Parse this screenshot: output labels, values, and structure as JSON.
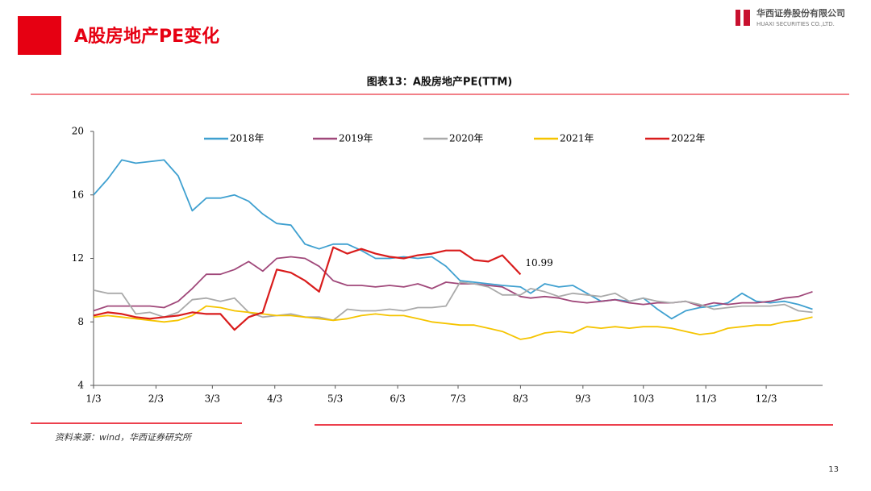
{
  "header": {
    "title": "A股房地产PE变化",
    "logo_cn": "华西证券股份有限公司",
    "logo_en": "HUAXI SECURITIES CO.,LTD."
  },
  "chart_data": {
    "type": "line",
    "title": "图表13：A股房地产PE(TTM)",
    "x": [
      "1/3",
      "1/10",
      "1/17",
      "1/24",
      "1/31",
      "2/7",
      "2/14",
      "2/21",
      "2/28",
      "3/7",
      "3/14",
      "3/21",
      "3/28",
      "4/4",
      "4/11",
      "4/18",
      "4/25",
      "5/2",
      "5/9",
      "5/16",
      "5/23",
      "5/30",
      "6/6",
      "6/13",
      "6/20",
      "6/27",
      "7/4",
      "7/11",
      "7/18",
      "7/25",
      "8/3",
      "8/8",
      "8/15",
      "8/22",
      "8/29",
      "9/5",
      "9/12",
      "9/19",
      "9/26",
      "10/3",
      "10/10",
      "10/17",
      "10/24",
      "10/31",
      "11/7",
      "11/14",
      "11/21",
      "11/28",
      "12/5",
      "12/12",
      "12/19",
      "12/26"
    ],
    "xlim": [
      "1/3",
      "12/31"
    ],
    "xticks": [
      "1/3",
      "2/3",
      "3/3",
      "4/3",
      "5/3",
      "6/3",
      "7/3",
      "8/3",
      "9/3",
      "10/3",
      "11/3",
      "12/3"
    ],
    "ylim": [
      4,
      20
    ],
    "yticks": [
      4,
      8,
      12,
      16,
      20
    ],
    "legend": "top",
    "series": [
      {
        "name": "2018年",
        "color": "#3fa0d0",
        "values": [
          16.0,
          17.0,
          18.2,
          18.0,
          18.1,
          18.2,
          17.2,
          15.0,
          15.8,
          15.8,
          16.0,
          15.6,
          14.8,
          14.2,
          14.1,
          12.9,
          12.6,
          12.9,
          12.9,
          12.5,
          12.0,
          12.0,
          12.1,
          12.0,
          12.1,
          11.5,
          10.6,
          10.5,
          10.4,
          10.3,
          10.2,
          9.8,
          10.4,
          10.2,
          10.3,
          9.8,
          9.3,
          9.4,
          9.3,
          9.5,
          8.8,
          8.2,
          8.7,
          8.9,
          9.0,
          9.2,
          9.8,
          9.3,
          9.2,
          9.3,
          9.1,
          8.8
        ]
      },
      {
        "name": "2019年",
        "color": "#a0487a",
        "values": [
          8.7,
          9.0,
          9.0,
          9.0,
          9.0,
          8.9,
          9.3,
          10.1,
          11.0,
          11.0,
          11.3,
          11.8,
          11.2,
          12.0,
          12.1,
          12.0,
          11.5,
          10.6,
          10.3,
          10.3,
          10.2,
          10.3,
          10.2,
          10.4,
          10.1,
          10.5,
          10.4,
          10.4,
          10.3,
          10.2,
          9.6,
          9.5,
          9.6,
          9.5,
          9.3,
          9.2,
          9.3,
          9.4,
          9.2,
          9.1,
          9.2,
          9.2,
          9.3,
          9.0,
          9.2,
          9.1,
          9.2,
          9.2,
          9.3,
          9.5,
          9.6,
          9.9
        ]
      },
      {
        "name": "2020年",
        "color": "#aaaaaa",
        "values": [
          10.0,
          9.8,
          9.8,
          8.5,
          8.6,
          8.3,
          8.6,
          9.4,
          9.5,
          9.3,
          9.5,
          8.6,
          8.3,
          8.4,
          8.5,
          8.3,
          8.3,
          8.1,
          8.8,
          8.7,
          8.7,
          8.8,
          8.7,
          8.9,
          8.9,
          9.0,
          10.5,
          10.4,
          10.2,
          9.7,
          9.7,
          10.1,
          9.9,
          9.6,
          9.8,
          9.7,
          9.6,
          9.8,
          9.3,
          9.5,
          9.3,
          9.2,
          9.3,
          9.1,
          8.8,
          8.9,
          9.0,
          9.0,
          9.0,
          9.1,
          8.7,
          8.6
        ]
      },
      {
        "name": "2021年",
        "color": "#f5c400",
        "values": [
          8.3,
          8.4,
          8.3,
          8.2,
          8.1,
          8.0,
          8.1,
          8.4,
          9.0,
          8.9,
          8.7,
          8.6,
          8.5,
          8.4,
          8.4,
          8.3,
          8.2,
          8.1,
          8.2,
          8.4,
          8.5,
          8.4,
          8.4,
          8.2,
          8.0,
          7.9,
          7.8,
          7.8,
          7.6,
          7.4,
          6.9,
          7.0,
          7.3,
          7.4,
          7.3,
          7.7,
          7.6,
          7.7,
          7.6,
          7.7,
          7.7,
          7.6,
          7.4,
          7.2,
          7.3,
          7.6,
          7.7,
          7.8,
          7.8,
          8.0,
          8.1,
          8.3
        ]
      },
      {
        "name": "2022年",
        "color": "#d91c1c",
        "values": [
          8.4,
          8.6,
          8.5,
          8.3,
          8.2,
          8.3,
          8.4,
          8.6,
          8.5,
          8.5,
          7.5,
          8.3,
          8.6,
          11.3,
          11.1,
          10.6,
          9.9,
          12.7,
          12.3,
          12.6,
          12.3,
          12.1,
          12.0,
          12.2,
          12.3,
          12.5,
          12.5,
          11.9,
          11.8,
          12.2,
          10.99,
          null,
          null,
          null,
          null,
          null,
          null,
          null,
          null,
          null,
          null,
          null,
          null,
          null,
          null,
          null,
          null,
          null,
          null,
          null,
          null,
          null
        ],
        "value_labels": [
          null,
          null,
          null,
          null,
          null,
          null,
          null,
          null,
          null,
          null,
          null,
          null,
          null,
          null,
          null,
          null,
          null,
          null,
          null,
          null,
          null,
          null,
          null,
          null,
          null,
          null,
          null,
          null,
          null,
          null,
          "10.99",
          null,
          null,
          null,
          null,
          null,
          null,
          null,
          null,
          null,
          null,
          null,
          null,
          null,
          null,
          null,
          null,
          null,
          null,
          null,
          null,
          null
        ]
      }
    ]
  },
  "footer": {
    "source": "资料来源：wind，华西证券研究所",
    "page": "13"
  }
}
